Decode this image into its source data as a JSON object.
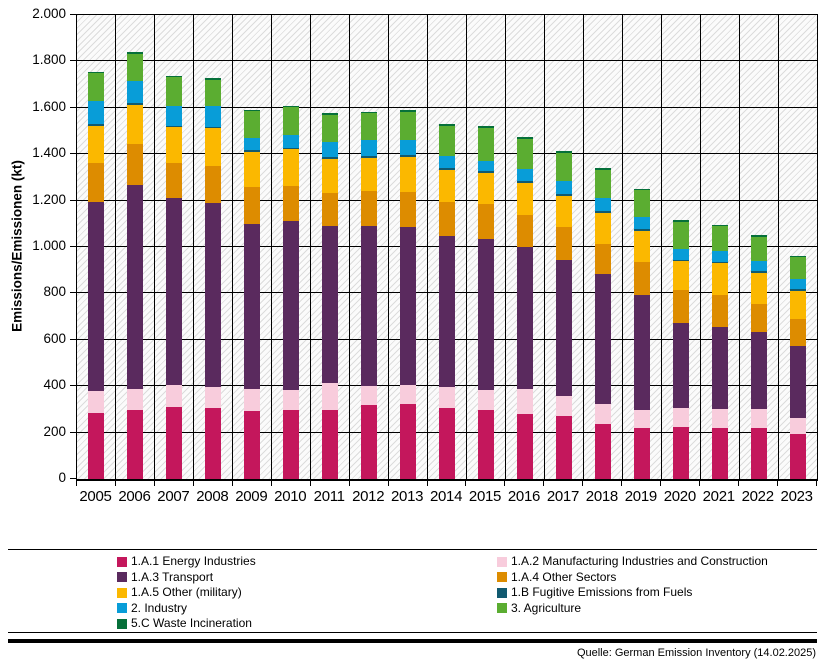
{
  "chart_data": {
    "type": "bar",
    "stacked": true,
    "title": "",
    "xlabel": "",
    "ylabel": "Emissions/Emissionen (kt)",
    "ylim": [
      0,
      2000
    ],
    "grid": true,
    "legend_position": "bottom",
    "y_tick_labels": [
      "0",
      "200",
      "400",
      "600",
      "800",
      "1.000",
      "1.200",
      "1.400",
      "1.600",
      "1.800",
      "2.000"
    ],
    "categories": [
      "2005",
      "2006",
      "2007",
      "2008",
      "2009",
      "2010",
      "2011",
      "2012",
      "2013",
      "2014",
      "2015",
      "2016",
      "2017",
      "2018",
      "2019",
      "2020",
      "2021",
      "2022",
      "2023"
    ],
    "series": [
      {
        "name": "1.A.1 Energy Industries",
        "color": "#C4175C",
        "values": [
          286,
          296,
          310,
          305,
          293,
          300,
          296,
          318,
          322,
          305,
          300,
          282,
          274,
          236,
          219,
          224,
          222,
          219,
          196
        ]
      },
      {
        "name": "1.A.2 Manufacturing Industries and Construction",
        "color": "#F8CCDC",
        "values": [
          96,
          94,
          98,
          91,
          97,
          86,
          119,
          82,
          83,
          91,
          86,
          107,
          83,
          86,
          81,
          83,
          81,
          85,
          68
        ]
      },
      {
        "name": "1.A.3 Transport",
        "color": "#5A2A5E",
        "values": [
          815,
          879,
          805,
          796,
          711,
          726,
          679,
          692,
          682,
          653,
          650,
          615,
          587,
          565,
          497,
          368,
          355,
          332,
          311
        ]
      },
      {
        "name": "1.A.4 Other Sectors",
        "color": "#DD8C00",
        "values": [
          169,
          176,
          153,
          160,
          161,
          154,
          143,
          153,
          153,
          146,
          151,
          137,
          143,
          128,
          140,
          140,
          136,
          122,
          118
        ]
      },
      {
        "name": "1.A.5 Other (military)",
        "color": "#FBB800",
        "values": [
          160,
          171,
          153,
          163,
          152,
          157,
          146,
          143,
          152,
          140,
          136,
          139,
          136,
          136,
          136,
          126,
          139,
          133,
          122
        ]
      },
      {
        "name": "1.B Fugitive Emissions from Fuels",
        "color": "#115A70",
        "values": [
          5,
          5,
          5,
          5,
          5,
          5,
          5,
          5,
          5,
          5,
          5,
          5,
          5,
          5,
          5,
          5,
          5,
          5,
          5
        ]
      },
      {
        "name": "2. Industry",
        "color": "#089DD8",
        "values": [
          100,
          96,
          85,
          89,
          54,
          55,
          67,
          71,
          67,
          52,
          45,
          52,
          59,
          56,
          52,
          48,
          46,
          44,
          43
        ]
      },
      {
        "name": "3. Agriculture",
        "color": "#5BAD31",
        "values": [
          120,
          118,
          124,
          113,
          114,
          121,
          117,
          115,
          121,
          133,
          142,
          131,
          121,
          123,
          117,
          117,
          108,
          106,
          95
        ]
      },
      {
        "name": "5.C Waste Incineration",
        "color": "#06703A",
        "values": [
          5,
          5,
          5,
          5,
          5,
          5,
          5,
          5,
          5,
          5,
          5,
          5,
          5,
          5,
          5,
          5,
          5,
          5,
          5
        ]
      }
    ],
    "totals": [
      1756,
      1840,
      1738,
      1727,
      1592,
      1609,
      1577,
      1584,
      1590,
      1530,
      1520,
      1473,
      1413,
      1340,
      1252,
      1116,
      1097,
      1051,
      963
    ],
    "legend_columns": [
      [
        "1.A.1 Energy Industries",
        "1.A.3 Transport",
        "1.A.5 Other (military)",
        "2. Industry",
        "5.C Waste Incineration"
      ],
      [
        "1.A.2 Manufacturing Industries and Construction",
        "1.A.4 Other Sectors",
        "1.B Fugitive Emissions from Fuels",
        "3. Agriculture"
      ]
    ],
    "source": "Quelle: German Emission Inventory (14.02.2025)"
  }
}
